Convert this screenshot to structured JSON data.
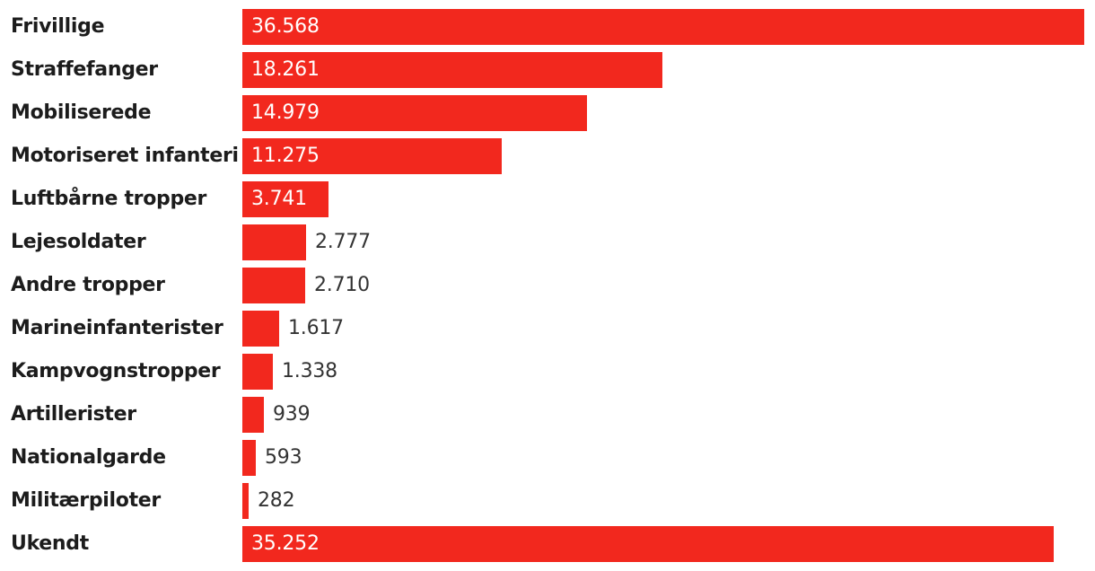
{
  "chart_data": {
    "type": "bar",
    "orientation": "horizontal",
    "categories": [
      "Frivillige",
      "Straffefanger",
      "Mobiliserede",
      "Motoriseret infanteri",
      "Luftbårne tropper",
      "Lejesoldater",
      "Andre tropper",
      "Marineinfanterister",
      "Kampvognstropper",
      "Artillerister",
      "Nationalgarde",
      "Militærpiloter",
      "Ukendt"
    ],
    "values": [
      36568,
      18261,
      14979,
      11275,
      3741,
      2777,
      2710,
      1617,
      1338,
      939,
      593,
      282,
      35252
    ],
    "value_labels": [
      "36.568",
      "18.261",
      "14.979",
      "11.275",
      "3.741",
      "2.777",
      "2.710",
      "1.617",
      "1.338",
      "939",
      "593",
      "282",
      "35.252"
    ],
    "xlim": [
      0,
      36568
    ],
    "grid": false,
    "bar_color": "#f2281e",
    "inside_label_color": "#ffffff",
    "outside_label_color": "#333333",
    "category_label_color": "#1c1c1c"
  }
}
